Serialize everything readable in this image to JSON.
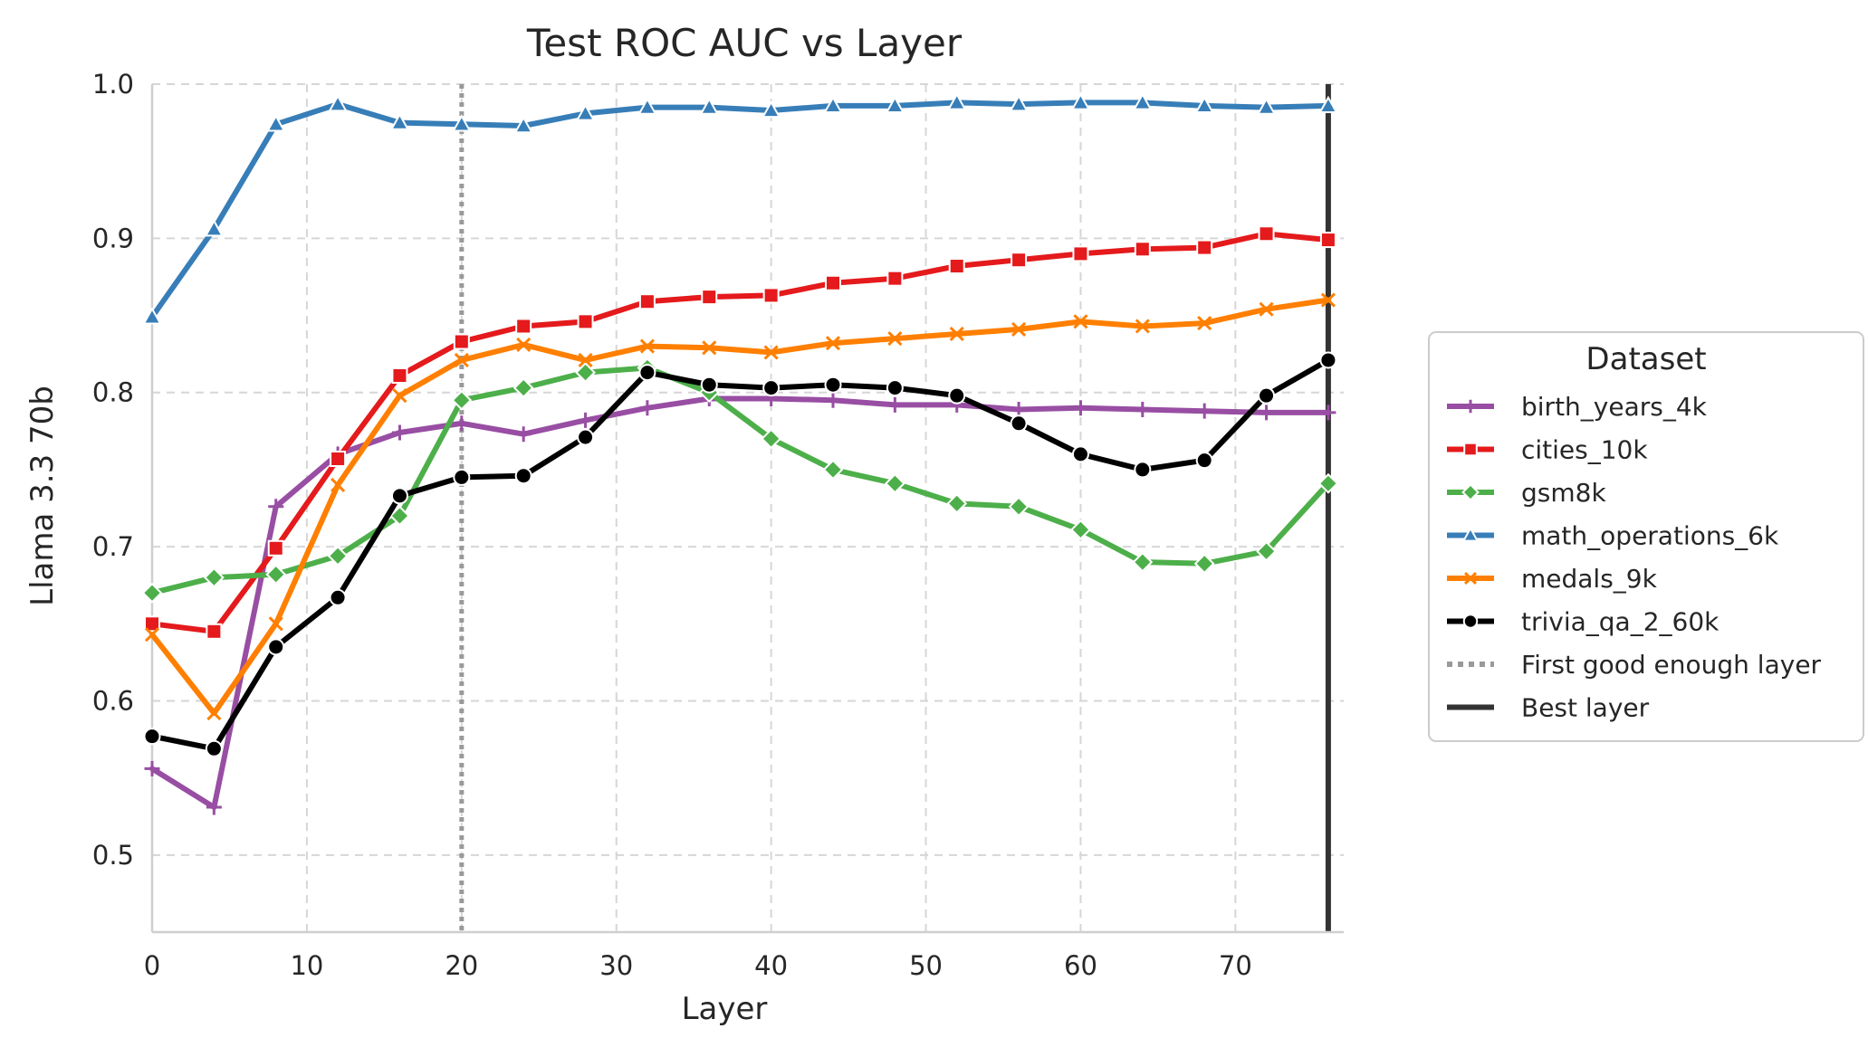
{
  "chart_data": {
    "type": "line",
    "title": "Test ROC AUC vs Layer",
    "xlabel": "Layer",
    "ylabel": "Llama 3.3 70b",
    "xlim": [
      0,
      77
    ],
    "ylim": [
      0.45,
      1.0
    ],
    "x_ticks": [
      "0",
      "10",
      "20",
      "30",
      "40",
      "50",
      "60",
      "70"
    ],
    "y_ticks": [
      "0.5",
      "0.6",
      "0.7",
      "0.8",
      "0.9",
      "1.0"
    ],
    "grid": true,
    "legend_position": "right, outside",
    "legend_title": "Dataset",
    "x": [
      0,
      4,
      8,
      12,
      16,
      20,
      24,
      28,
      32,
      36,
      40,
      44,
      48,
      52,
      56,
      60,
      64,
      68,
      72,
      76
    ],
    "series": [
      {
        "name": "birth_years_4k",
        "color": "#984ea3",
        "marker": "plus",
        "values": [
          0.556,
          0.531,
          0.726,
          0.76,
          0.774,
          0.78,
          0.773,
          0.782,
          0.79,
          0.796,
          0.796,
          0.795,
          0.792,
          0.792,
          0.789,
          0.79,
          0.789,
          0.788,
          0.787,
          0.787
        ]
      },
      {
        "name": "cities_10k",
        "color": "#e41a1c",
        "marker": "square",
        "values": [
          0.65,
          0.645,
          0.699,
          0.757,
          0.811,
          0.833,
          0.843,
          0.846,
          0.859,
          0.862,
          0.863,
          0.871,
          0.874,
          0.882,
          0.886,
          0.89,
          0.893,
          0.894,
          0.903,
          0.899
        ]
      },
      {
        "name": "gsm8k",
        "color": "#4daf4a",
        "marker": "diamond",
        "values": [
          0.67,
          0.68,
          0.682,
          0.694,
          0.72,
          0.795,
          0.803,
          0.813,
          0.816,
          0.8,
          0.77,
          0.75,
          0.741,
          0.728,
          0.726,
          0.711,
          0.69,
          0.689,
          0.697,
          0.741
        ]
      },
      {
        "name": "math_operations_6k",
        "color": "#377eb8",
        "marker": "triangle",
        "values": [
          0.849,
          0.906,
          0.974,
          0.987,
          0.975,
          0.974,
          0.973,
          0.981,
          0.985,
          0.985,
          0.983,
          0.986,
          0.986,
          0.988,
          0.987,
          0.988,
          0.988,
          0.986,
          0.985,
          0.986
        ]
      },
      {
        "name": "medals_9k",
        "color": "#ff7f00",
        "marker": "x",
        "values": [
          0.643,
          0.592,
          0.65,
          0.74,
          0.798,
          0.821,
          0.831,
          0.821,
          0.83,
          0.829,
          0.826,
          0.832,
          0.835,
          0.838,
          0.841,
          0.846,
          0.843,
          0.845,
          0.854,
          0.86
        ]
      },
      {
        "name": "trivia_qa_2_60k",
        "color": "#000000",
        "marker": "circle",
        "values": [
          0.577,
          0.569,
          0.635,
          0.667,
          0.733,
          0.745,
          0.746,
          0.771,
          0.813,
          0.805,
          0.803,
          0.805,
          0.803,
          0.798,
          0.78,
          0.76,
          0.75,
          0.756,
          0.798,
          0.821
        ]
      }
    ],
    "reference_lines": [
      {
        "name": "First good enough layer",
        "x": 20,
        "style": "dotted",
        "color": "#999999"
      },
      {
        "name": "Best layer",
        "x": 76,
        "style": "solid",
        "color": "#333333"
      }
    ]
  }
}
